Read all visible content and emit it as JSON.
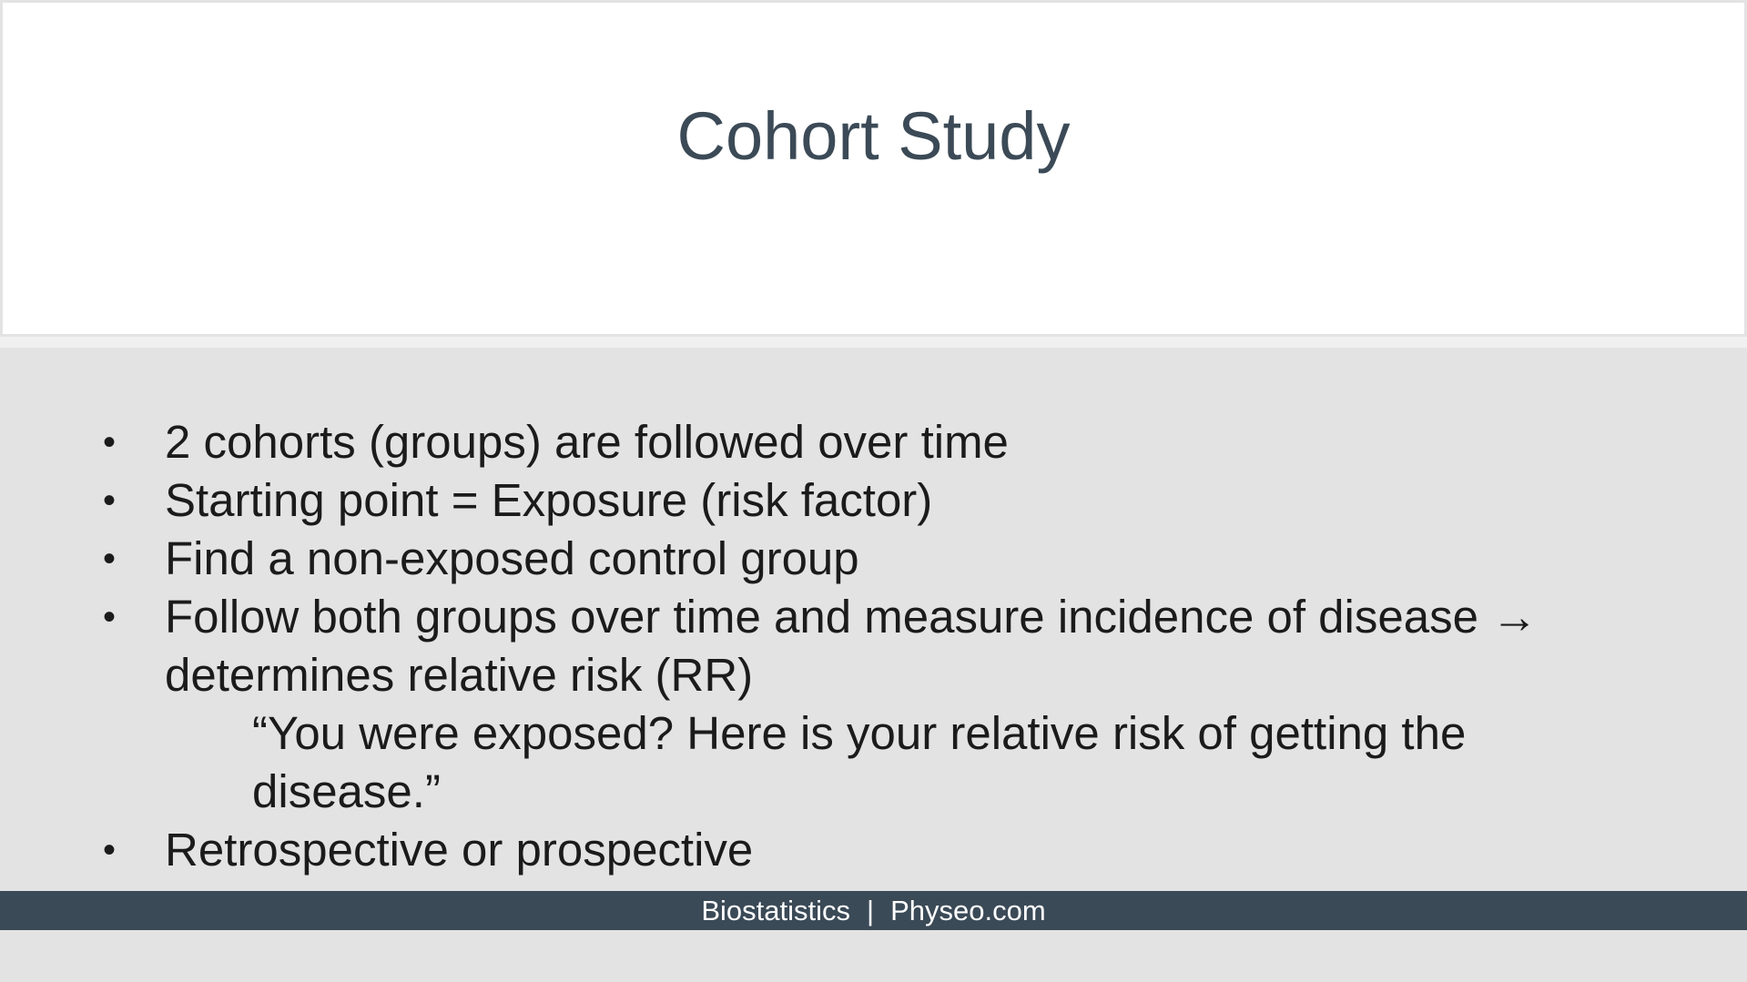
{
  "slide": {
    "title": "Cohort Study",
    "bullets": [
      "2 cohorts (groups) are followed over time",
      "Starting point = Exposure (risk factor)",
      "Find a non-exposed control group",
      "Follow both groups over time and measure incidence of disease → determines relative risk (RR)"
    ],
    "sub_bullet": "“You were exposed? Here is your relative risk of getting the disease.”",
    "last_bullet": "Retrospective or prospective",
    "bullet_symbol": "•"
  },
  "footer": {
    "left": "Biostatistics",
    "separator": "|",
    "right": "Physeo.com"
  },
  "colors": {
    "title": "#3b4a56",
    "footer_bg": "#3b4a57",
    "body_bg": "#e3e3e3"
  }
}
